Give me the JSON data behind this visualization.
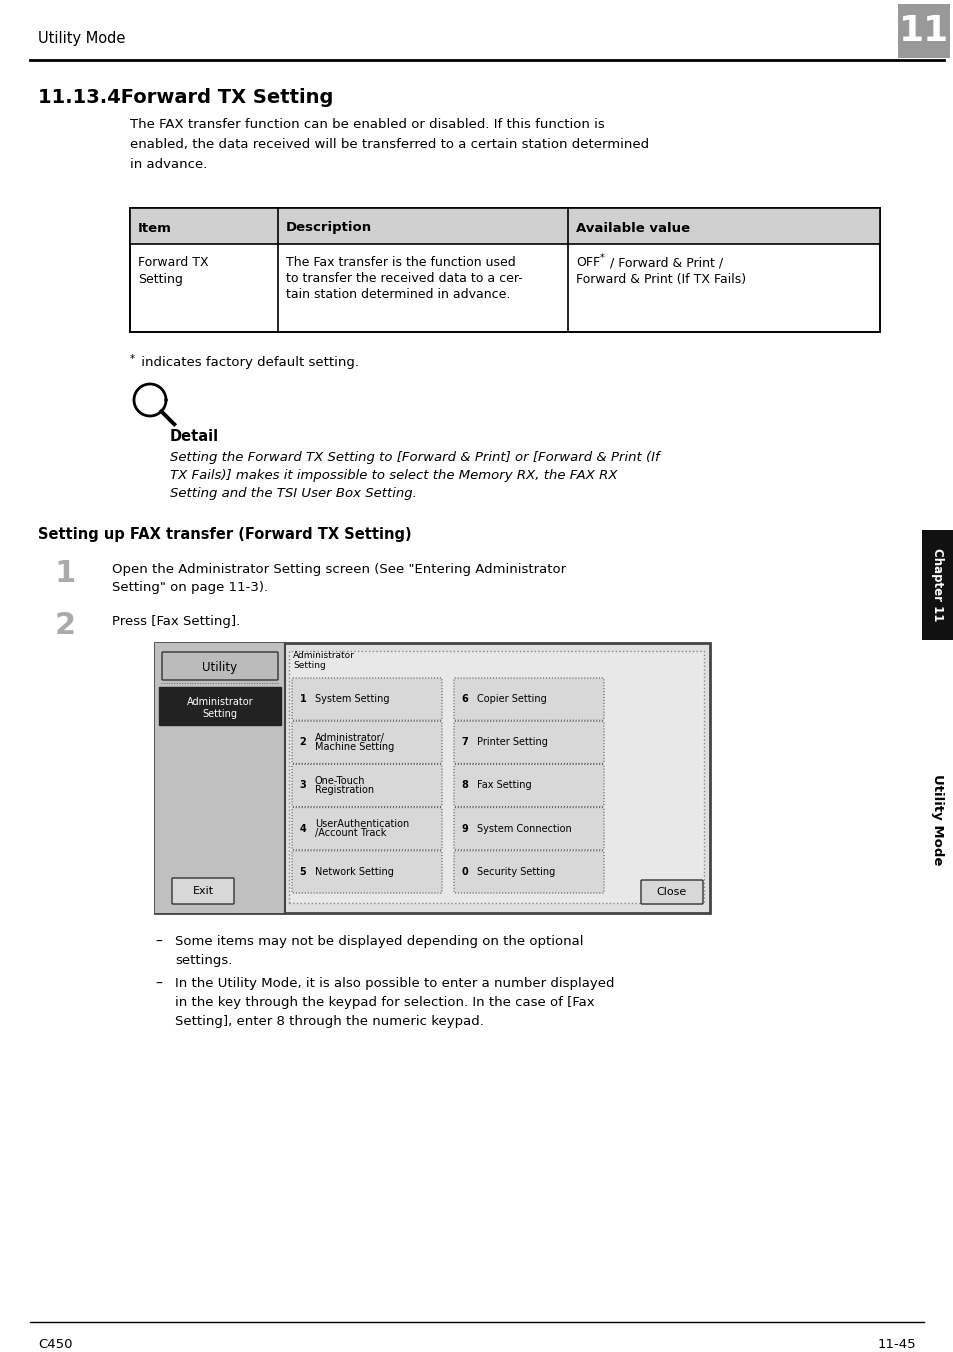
{
  "page_title": "Utility Mode",
  "chapter_number": "11",
  "section_title": "11.13.4Forward TX Setting",
  "intro_text": "The FAX transfer function can be enabled or disabled. If this function is\nenabled, the data received will be transferred to a certain station determined\nin advance.",
  "table_headers": [
    "Item",
    "Description",
    "Available value"
  ],
  "table_row_col1": "Forward TX\nSetting",
  "table_row_col2": "The Fax transfer is the function used\nto transfer the received data to a cer-\ntain station determined in advance.",
  "table_row_col3_line1": "OFF",
  "table_row_col3_star": "*",
  "table_row_col3_line1_rest": " / Forward & Print /",
  "table_row_col3_line2": "Forward & Print (If TX Fails)",
  "footnote_star": "*",
  "footnote_text": " indicates factory default setting.",
  "detail_label": "Detail",
  "detail_text": "Setting the Forward TX Setting to [Forward & Print] or [Forward & Print (If\nTX Fails)] makes it impossible to select the Memory RX, the FAX RX\nSetting and the TSI User Box Setting.",
  "subsection_title": "Setting up FAX transfer (Forward TX Setting)",
  "step1_num": "1",
  "step1_text": "Open the Administrator Setting screen (See \"Entering Administrator\nSetting\" on page 11-3).",
  "step2_num": "2",
  "step2_text": "Press [Fax Setting].",
  "bullet1_line1": "Some items may not be displayed depending on the optional",
  "bullet1_line2": "settings.",
  "bullet2_line1": "In the Utility Mode, it is also possible to enter a number displayed",
  "bullet2_line2": "in the key through the keypad for selection. In the case of [Fax",
  "bullet2_line3": "Setting], enter 8 through the numeric keypad.",
  "footer_left": "C450",
  "footer_right": "11-45",
  "sidebar_text": "Utility Mode",
  "sidebar_chapter": "Chapter 11",
  "background_color": "#ffffff",
  "table_header_bg": "#d0d0d0",
  "chapter_box_bg": "#999999",
  "screen_btn_labels_left": [
    "System Setting",
    "Administrator/\nMachine Setting",
    "One-Touch\nRegistration",
    "UserAuthentication\n/Account Track",
    "Network Setting"
  ],
  "screen_btn_nums_left": [
    "1",
    "2",
    "3",
    "4",
    "5"
  ],
  "screen_btn_labels_right": [
    "Copier Setting",
    "Printer Setting",
    "Fax Setting",
    "System Connection",
    "Security Setting"
  ],
  "screen_btn_nums_right": [
    "6",
    "7",
    "8",
    "9",
    "0"
  ]
}
